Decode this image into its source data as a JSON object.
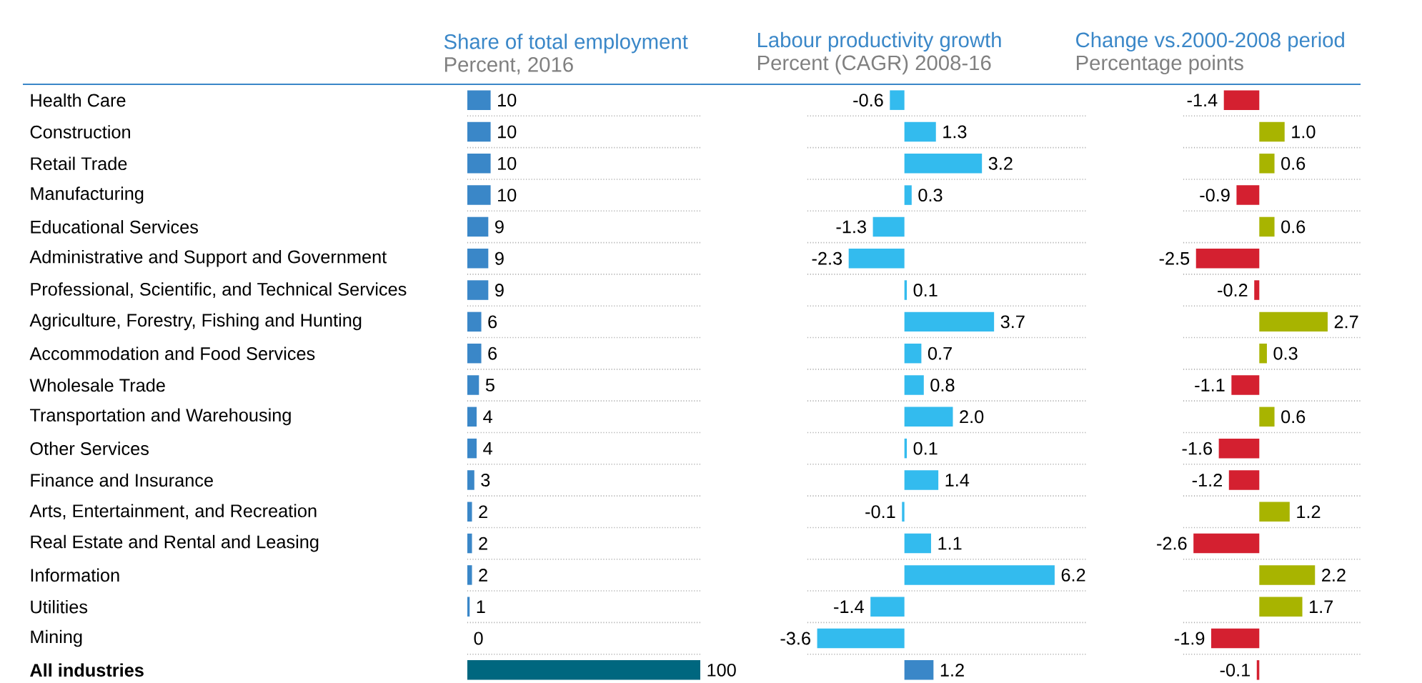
{
  "chart_data": [
    {
      "type": "bar",
      "orientation": "horizontal",
      "title": "Share of total employment",
      "subtitle": "Percent, 2016",
      "categories": [
        "Health Care",
        "Construction",
        "Retail Trade",
        "Manufacturing",
        "Educational Services",
        "Administrative and Support and Government",
        "Professional, Scientific, and Technical Services",
        "Agriculture, Forestry, Fishing and Hunting",
        "Accommodation and Food Services",
        "Wholesale Trade",
        "Transportation and Warehousing",
        "Other Services",
        "Finance and Insurance",
        "Arts, Entertainment, and Recreation",
        "Real Estate and Rental and Leasing",
        "Information",
        "Utilities",
        "Mining",
        "**All industries**"
      ],
      "values": [
        10,
        10,
        10,
        10,
        9,
        9,
        9,
        6,
        6,
        5,
        4,
        4,
        3,
        2,
        2,
        2,
        1,
        0,
        100
      ],
      "colors": [
        "#3a87c8",
        "#3a87c8",
        "#3a87c8",
        "#3a87c8",
        "#3a87c8",
        "#3a87c8",
        "#3a87c8",
        "#3a87c8",
        "#3a87c8",
        "#3a87c8",
        "#3a87c8",
        "#3a87c8",
        "#3a87c8",
        "#3a87c8",
        "#3a87c8",
        "#3a87c8",
        "#3a87c8",
        "#3a87c8",
        "#00677f"
      ],
      "xlim": [
        0,
        100
      ],
      "data_labels": true,
      "grid": "y",
      "tick_labels": "y"
    },
    {
      "type": "bar",
      "orientation": "horizontal",
      "title": "Labour productivity growth",
      "subtitle": "Percent (CAGR) 2008-16",
      "categories": [
        null,
        null,
        null,
        null,
        null,
        null,
        null,
        null,
        null,
        null,
        null,
        null,
        null,
        null,
        null,
        null,
        null,
        null,
        null
      ],
      "values": [
        -0.6,
        1.3,
        3.2,
        0.3,
        -1.3,
        -2.3,
        0.1,
        3.7,
        0.7,
        0.8,
        2.0,
        0.1,
        1.4,
        -0.1,
        1.1,
        6.2,
        -1.4,
        -3.6,
        1.2
      ],
      "colors": [
        "#33bbee",
        "#33bbee",
        "#33bbee",
        "#33bbee",
        "#33bbee",
        "#33bbee",
        "#33bbee",
        "#33bbee",
        "#33bbee",
        "#33bbee",
        "#33bbee",
        "#33bbee",
        "#33bbee",
        "#33bbee",
        "#33bbee",
        "#33bbee",
        "#33bbee",
        "#33bbee",
        "#3a87c8"
      ],
      "value_labels": [
        "-0.6",
        "1.3",
        "3.2",
        "0.3",
        "-1.3",
        "-2.3",
        "0.1",
        "3.7",
        "0.7",
        "0.8",
        "2.0",
        "0.1",
        "1.4",
        "-0.1",
        "1.1",
        "6.2",
        "-1.4",
        "-3.6",
        "1.2"
      ],
      "xlim": [
        -4,
        7.5
      ],
      "grid": "y",
      "tick_labels": false
    },
    {
      "type": "bar",
      "orientation": "horizontal",
      "title": "Change vs.2000-2008 period",
      "subtitle": "Percentage points",
      "categories": [
        null,
        null,
        null,
        null,
        null,
        null,
        null,
        null,
        null,
        null,
        null,
        null,
        null,
        null,
        null,
        null,
        null,
        null,
        null
      ],
      "values": [
        -1.4,
        1.0,
        0.6,
        -0.9,
        0.6,
        -2.5,
        -0.2,
        2.7,
        0.3,
        -1.1,
        0.6,
        -1.6,
        -1.2,
        1.2,
        -2.6,
        2.2,
        1.7,
        -1.9,
        -0.1
      ],
      "colors": [
        "#d42030",
        "#a8b400",
        "#a8b400",
        "#d42030",
        "#a8b400",
        "#d42030",
        "#d42030",
        "#a8b400",
        "#a8b400",
        "#d42030",
        "#a8b400",
        "#d42030",
        "#d42030",
        "#a8b400",
        "#d42030",
        "#a8b400",
        "#a8b400",
        "#d42030",
        "#d42030"
      ],
      "value_labels": [
        "-1.4",
        "1.0",
        "0.6",
        "-0.9",
        "0.6",
        "-2.5",
        "-0.2",
        "2.7",
        "0.3",
        "-1.1",
        "0.6",
        "-1.6",
        "-1.2",
        "1.2",
        "-2.6",
        "2.2",
        "1.7",
        "-1.9",
        "-0.1"
      ],
      "xlim": [
        -3,
        4
      ],
      "grid": "y",
      "tick_labels": false
    }
  ]
}
